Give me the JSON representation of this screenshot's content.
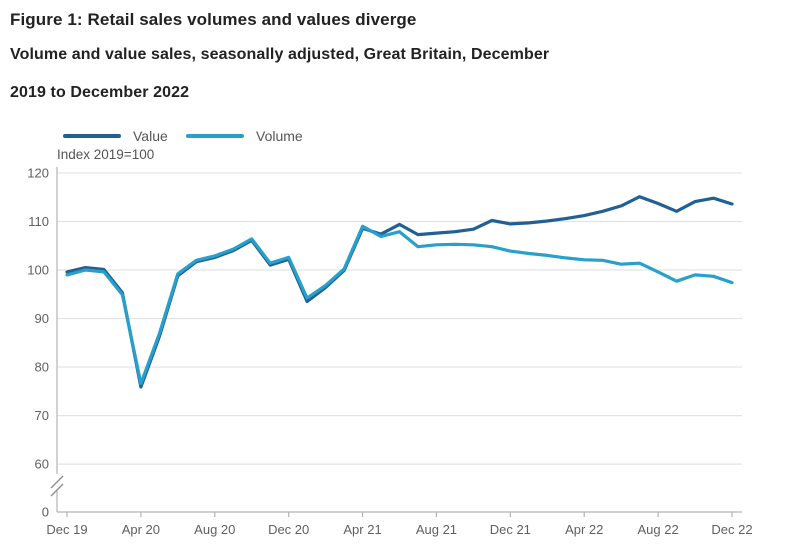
{
  "figure": {
    "title": "Figure 1: Retail sales volumes and values diverge",
    "subtitle_line1": "Volume and value sales, seasonally adjusted, Great Britain, December",
    "subtitle_line2": "2019 to December 2022",
    "axis_unit_label": "Index 2019=100"
  },
  "legend": {
    "items": [
      {
        "label": "Value",
        "color": "#206095"
      },
      {
        "label": "Volume",
        "color": "#27a0cc"
      }
    ]
  },
  "colors": {
    "value_line": "#206095",
    "volume_line": "#27a0cc",
    "gridline": "#e2e3e4",
    "axis_line": "#b1b4b6",
    "tick_text": "#5f6062"
  },
  "chart_data": {
    "type": "line",
    "title": "Figure 1: Retail sales volumes and values diverge",
    "subtitle": "Volume and value sales, seasonally adjusted, Great Britain, December 2019 to December 2022",
    "ylabel": "Index 2019=100",
    "xlabel": "",
    "grid": "horizontal",
    "legend_position": "top-left",
    "axis_break_between_0_and_60": true,
    "ylim_display": [
      60,
      120
    ],
    "y_tick_labels": [
      120,
      110,
      100,
      90,
      80,
      70,
      60,
      0
    ],
    "x_tick_labels": [
      "Dec 19",
      "Apr 20",
      "Aug 20",
      "Dec 20",
      "Apr 21",
      "Aug 21",
      "Dec 21",
      "Apr 22",
      "Aug 22",
      "Dec 22"
    ],
    "x": [
      "Dec 2019",
      "Jan 2020",
      "Feb 2020",
      "Mar 2020",
      "Apr 2020",
      "May 2020",
      "Jun 2020",
      "Jul 2020",
      "Aug 2020",
      "Sep 2020",
      "Oct 2020",
      "Nov 2020",
      "Dec 2020",
      "Jan 2021",
      "Feb 2021",
      "Mar 2021",
      "Apr 2021",
      "May 2021",
      "Jun 2021",
      "Jul 2021",
      "Aug 2021",
      "Sep 2021",
      "Oct 2021",
      "Nov 2021",
      "Dec 2021",
      "Jan 2022",
      "Feb 2022",
      "Mar 2022",
      "Apr 2022",
      "May 2022",
      "Jun 2022",
      "Jul 2022",
      "Aug 2022",
      "Sep 2022",
      "Oct 2022",
      "Nov 2022",
      "Dec 2022"
    ],
    "series": [
      {
        "name": "Value",
        "color": "#206095",
        "values": [
          99.6,
          100.5,
          100.1,
          95.3,
          75.9,
          86.3,
          98.8,
          101.7,
          102.6,
          104.0,
          106.1,
          101.0,
          102.2,
          93.5,
          96.4,
          99.9,
          108.6,
          107.4,
          109.4,
          107.3,
          107.6,
          107.9,
          108.4,
          110.2,
          109.5,
          109.7,
          110.1,
          110.6,
          111.2,
          112.1,
          113.2,
          115.1,
          113.7,
          112.1,
          114.1,
          114.8,
          113.6
        ]
      },
      {
        "name": "Volume",
        "color": "#27a0cc",
        "values": [
          99.0,
          100.0,
          99.6,
          94.9,
          76.6,
          86.9,
          99.2,
          102.0,
          102.9,
          104.3,
          106.4,
          101.4,
          102.6,
          94.2,
          96.8,
          100.2,
          109.0,
          106.9,
          107.9,
          104.8,
          105.2,
          105.3,
          105.2,
          104.8,
          103.9,
          103.4,
          103.0,
          102.5,
          102.1,
          102.0,
          101.2,
          101.4,
          99.6,
          97.7,
          99.0,
          98.7,
          97.4
        ]
      }
    ]
  }
}
